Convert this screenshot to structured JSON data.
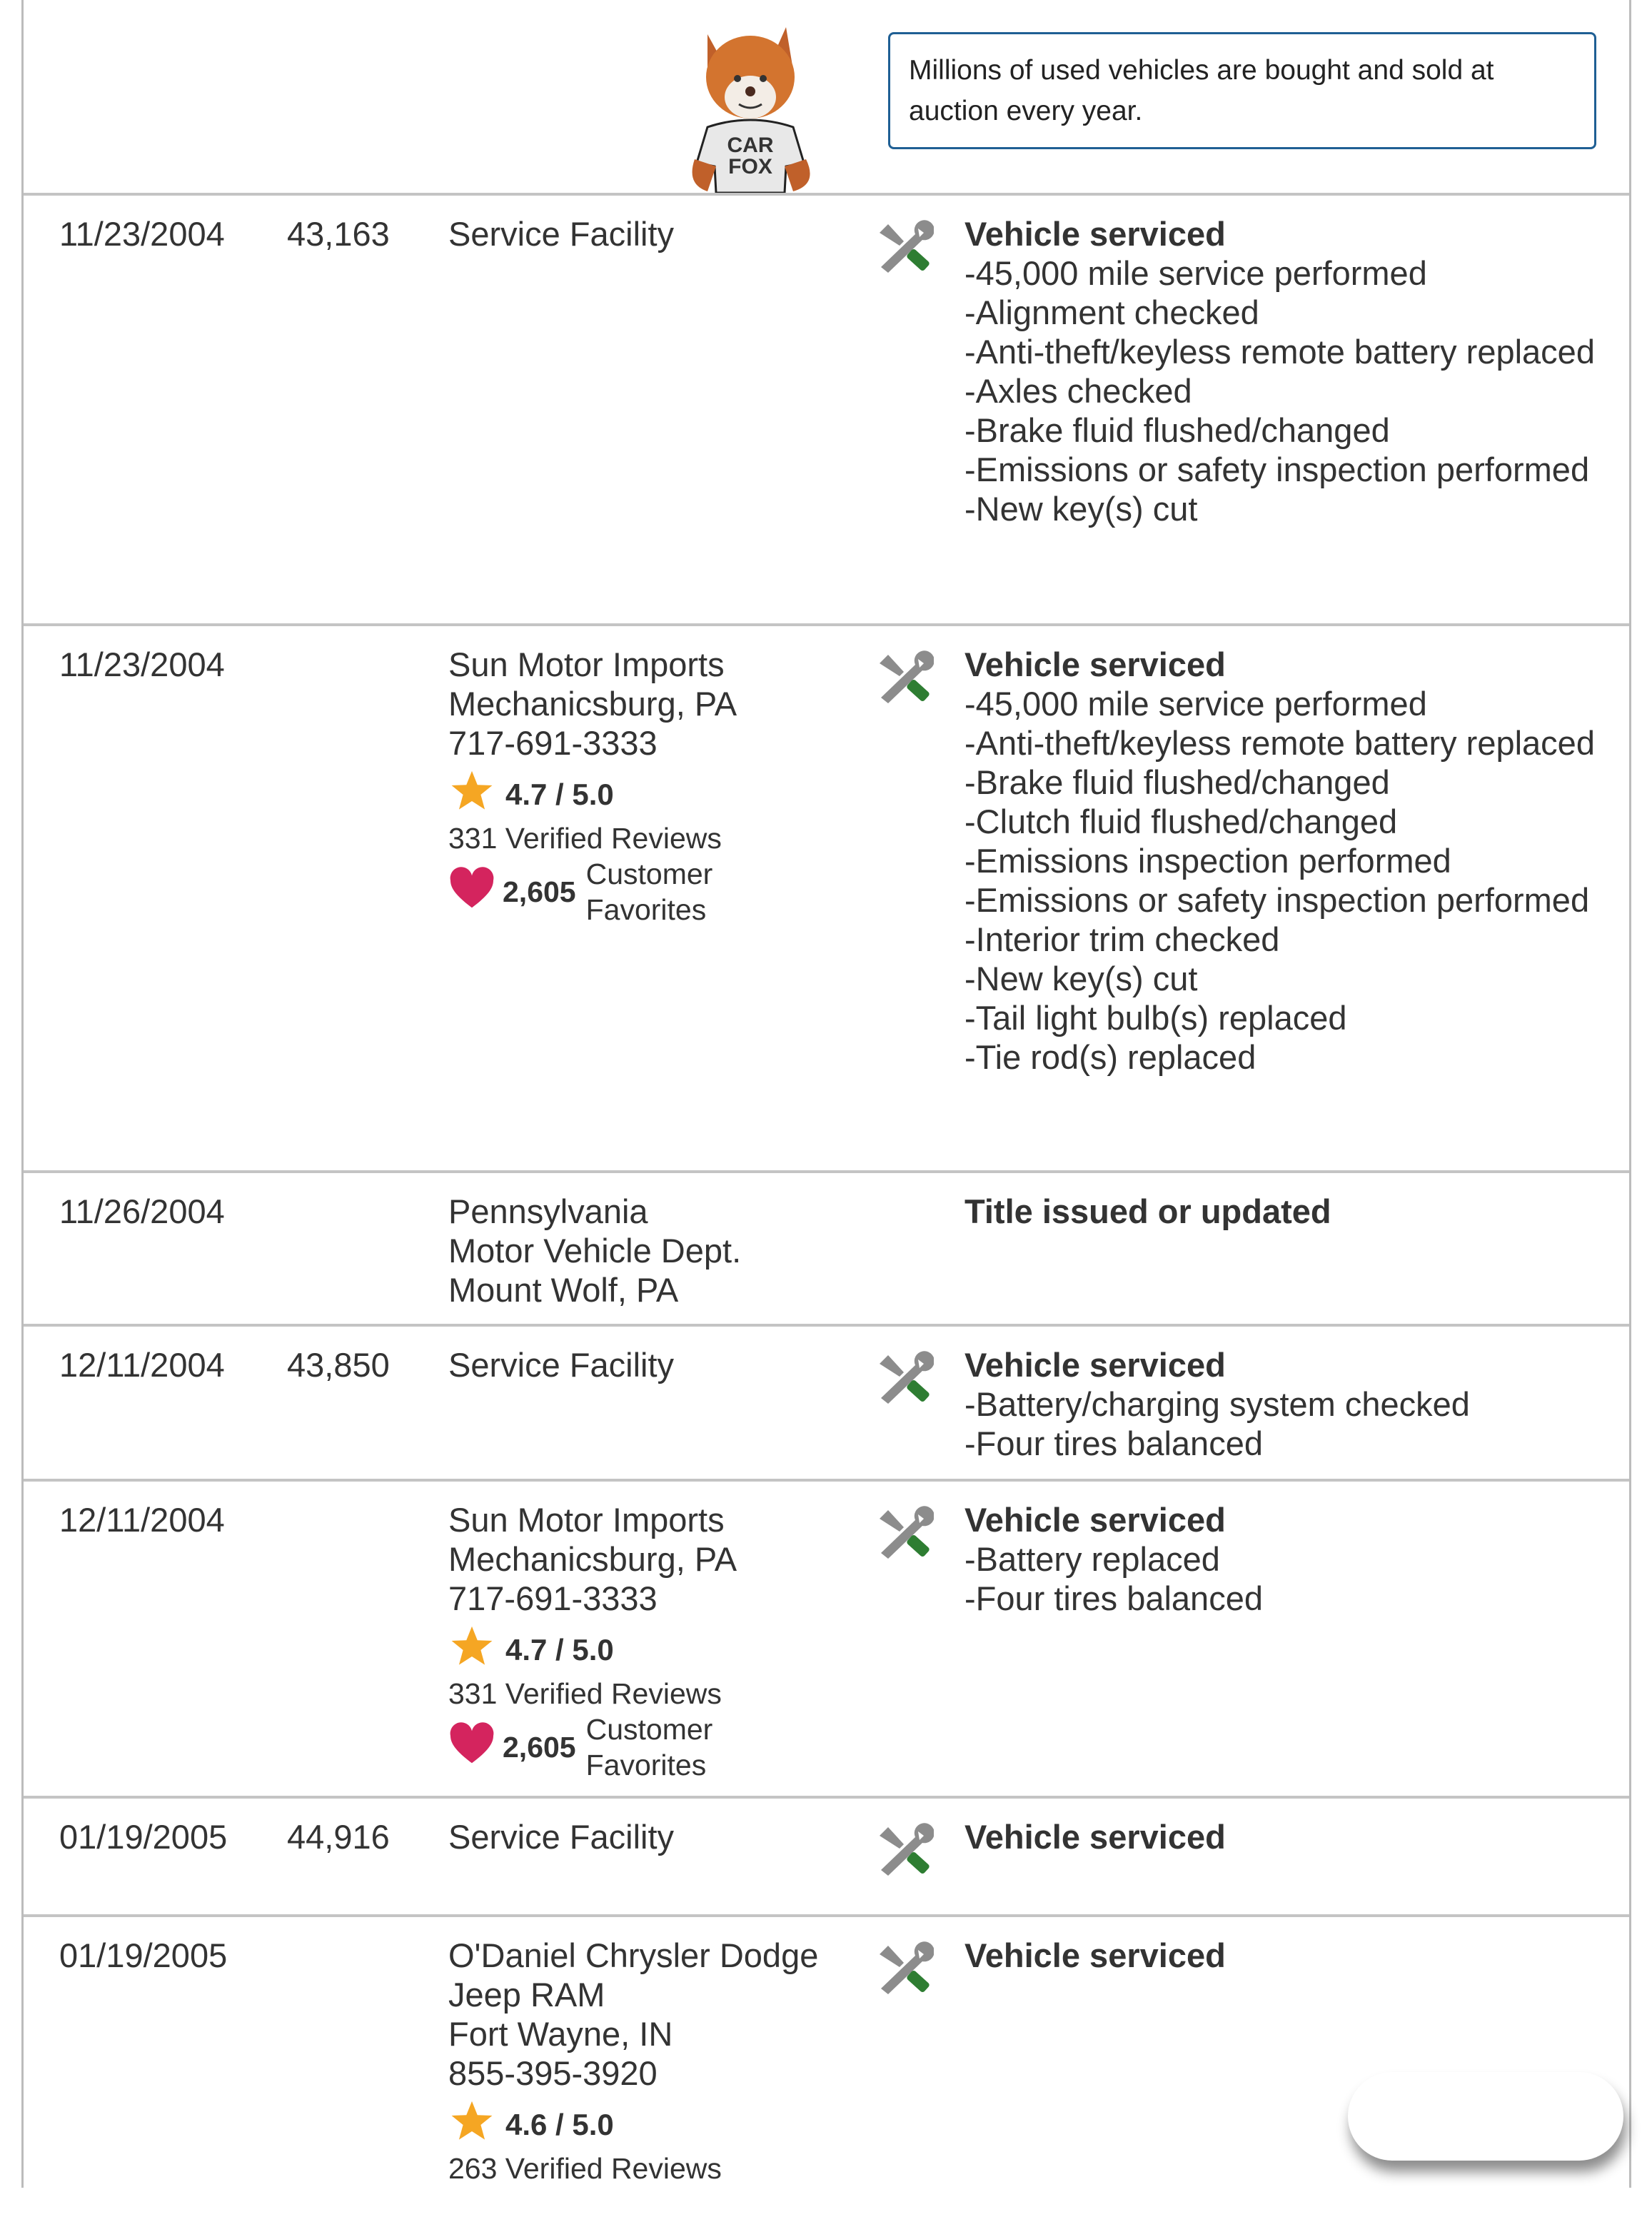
{
  "banner": {
    "mascot_shirt": "CAR FOX",
    "callout_text": "Millions of used vehicles are bought and sold at auction every year."
  },
  "colors": {
    "accent_border": "#1f5f94",
    "wrench": "#8c8c8c",
    "wrench_tip": "#2e7d32",
    "star": "#f5a623",
    "heart": "#d4245e"
  },
  "records": [
    {
      "date": "11/23/2004",
      "mileage": "43,163",
      "source": [
        "Service Facility"
      ],
      "icon": "service-wrench-icon",
      "title": "Vehicle serviced",
      "items": [
        "45,000 mile service performed",
        "Alignment checked",
        "Anti-theft/keyless remote battery replaced",
        "Axles checked",
        "Brake fluid flushed/changed",
        "Emissions or safety inspection performed",
        "New key(s) cut"
      ]
    },
    {
      "date": "11/23/2004",
      "mileage": "",
      "source": [
        "Sun Motor Imports",
        "Mechanicsburg, PA",
        "717-691-3333"
      ],
      "rating": "4.7 / 5.0",
      "reviews": "331 Verified Reviews",
      "favorites": "2,605",
      "favorites_label": "Customer Favorites",
      "icon": "service-wrench-icon",
      "title": "Vehicle serviced",
      "items": [
        "45,000 mile service performed",
        "Anti-theft/keyless remote battery replaced",
        "Brake fluid flushed/changed",
        "Clutch fluid flushed/changed",
        "Emissions inspection performed",
        "Emissions or safety inspection performed",
        "Interior trim checked",
        "New key(s) cut",
        "Tail light bulb(s) replaced",
        "Tie rod(s) replaced"
      ]
    },
    {
      "date": "11/26/2004",
      "mileage": "",
      "source": [
        "Pennsylvania",
        "Motor Vehicle Dept.",
        "Mount Wolf, PA"
      ],
      "title": "Title issued or updated",
      "items": []
    },
    {
      "date": "12/11/2004",
      "mileage": "43,850",
      "source": [
        "Service Facility"
      ],
      "icon": "service-wrench-icon",
      "title": "Vehicle serviced",
      "items": [
        "Battery/charging system checked",
        "Four tires balanced"
      ]
    },
    {
      "date": "12/11/2004",
      "mileage": "",
      "source": [
        "Sun Motor Imports",
        "Mechanicsburg, PA",
        "717-691-3333"
      ],
      "rating": "4.7 / 5.0",
      "reviews": "331 Verified Reviews",
      "favorites": "2,605",
      "favorites_label": "Customer Favorites",
      "icon": "service-wrench-icon",
      "title": "Vehicle serviced",
      "items": [
        "Battery replaced",
        "Four tires balanced"
      ]
    },
    {
      "date": "01/19/2005",
      "mileage": "44,916",
      "source": [
        "Service Facility"
      ],
      "icon": "service-wrench-icon",
      "title": "Vehicle serviced",
      "items": []
    },
    {
      "date": "01/19/2005",
      "mileage": "",
      "source": [
        "O'Daniel Chrysler Dodge",
        "Jeep RAM",
        "Fort Wayne, IN",
        "855-395-3920"
      ],
      "rating": "4.6 / 5.0",
      "reviews": "263 Verified Reviews",
      "icon": "service-wrench-icon",
      "title": "Vehicle serviced",
      "items": []
    }
  ]
}
